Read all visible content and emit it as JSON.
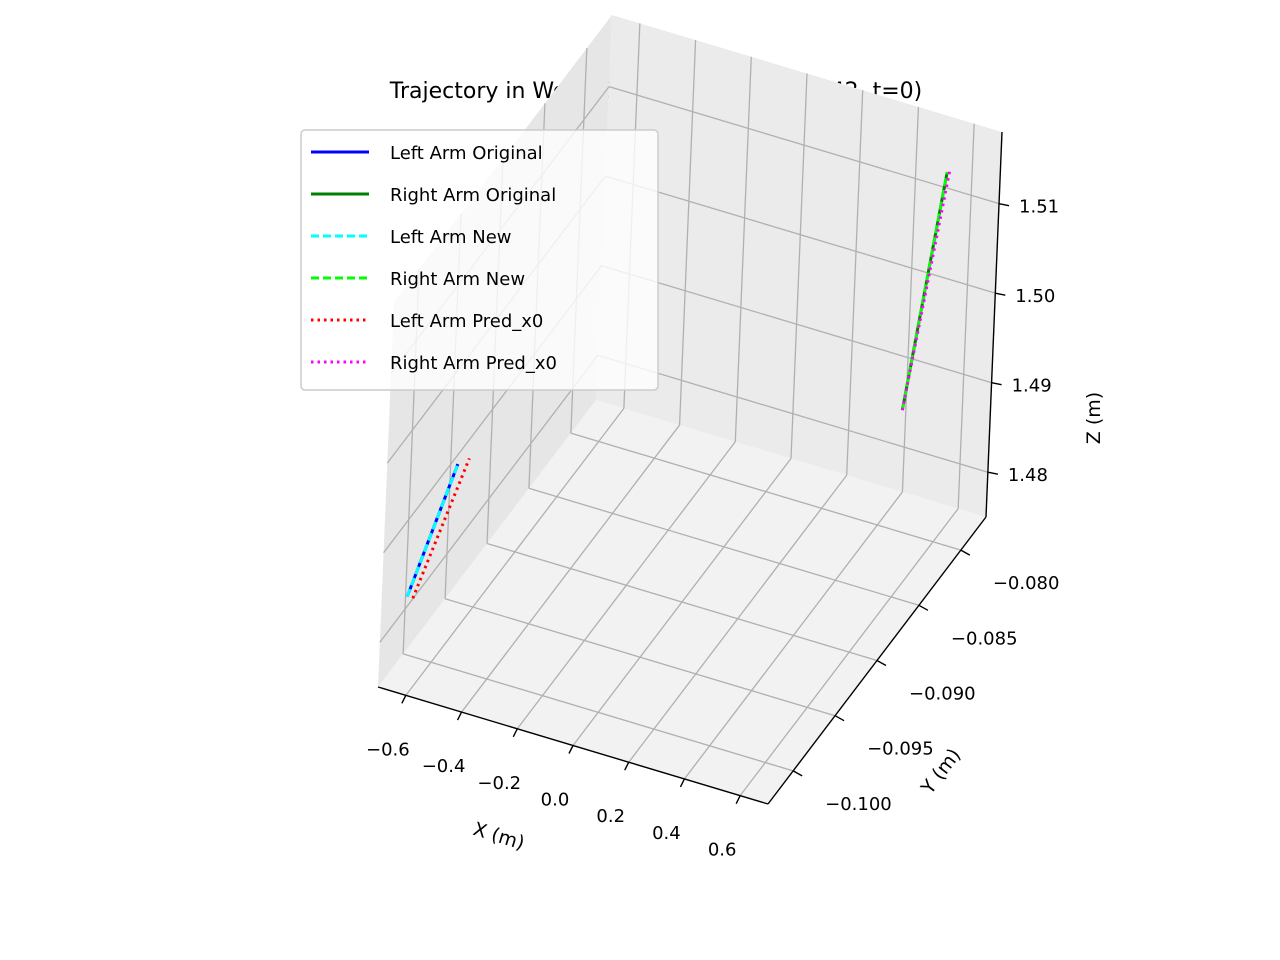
{
  "chart_data": {
    "type": "line3d",
    "title": "Trajectory in World Coordinates (count=42, t=0)",
    "xlabel": "X (m)",
    "ylabel": "Y (m)",
    "zlabel": "Z (m)",
    "xlim": [
      -0.7,
      0.7
    ],
    "ylim": [
      -0.103,
      -0.077
    ],
    "zlim": [
      1.475,
      1.518
    ],
    "xticks": [
      -0.6,
      -0.4,
      -0.2,
      0.0,
      0.2,
      0.4,
      0.6
    ],
    "xtick_labels": [
      "−0.6",
      "−0.4",
      "−0.2",
      "0.0",
      "0.2",
      "0.4",
      "0.6"
    ],
    "yticks": [
      -0.1,
      -0.095,
      -0.09,
      -0.085,
      -0.08
    ],
    "ytick_labels": [
      "−0.100",
      "−0.095",
      "−0.090",
      "−0.085",
      "−0.080"
    ],
    "zticks": [
      1.48,
      1.49,
      1.5,
      1.51
    ],
    "ztick_labels": [
      "1.48",
      "1.49",
      "1.50",
      "1.51"
    ],
    "grid": true,
    "legend_position": "upper-left",
    "series": [
      {
        "name": "Left Arm Original",
        "color": "#0000ff",
        "style": "solid",
        "x": [
          -0.68,
          -0.52
        ],
        "y": [
          -0.1005,
          -0.1005
        ],
        "z": [
          1.4822,
          1.4985
        ]
      },
      {
        "name": "Right Arm Original",
        "color": "#008000",
        "style": "solid",
        "x": [
          0.5,
          0.61
        ],
        "y": [
          -0.081,
          -0.0805
        ],
        "z": [
          1.49,
          1.517
        ]
      },
      {
        "name": "Left Arm New",
        "color": "#00ffff",
        "style": "dashed",
        "x": [
          -0.68,
          -0.52
        ],
        "y": [
          -0.1005,
          -0.1005
        ],
        "z": [
          1.4822,
          1.4985
        ]
      },
      {
        "name": "Right Arm New",
        "color": "#00ff00",
        "style": "dashed",
        "x": [
          0.5,
          0.61
        ],
        "y": [
          -0.081,
          -0.0805
        ],
        "z": [
          1.49,
          1.517
        ]
      },
      {
        "name": "Left Arm Pred_x0",
        "color": "#ff0000",
        "style": "dotted",
        "x": [
          -0.66,
          -0.48
        ],
        "y": [
          -0.1005,
          -0.1005
        ],
        "z": [
          1.4822,
          1.4995
        ]
      },
      {
        "name": "Right Arm Pred_x0",
        "color": "#ff00ff",
        "style": "dotted",
        "x": [
          0.5,
          0.62
        ],
        "y": [
          -0.081,
          -0.0805
        ],
        "z": [
          1.49,
          1.5175
        ]
      }
    ]
  }
}
